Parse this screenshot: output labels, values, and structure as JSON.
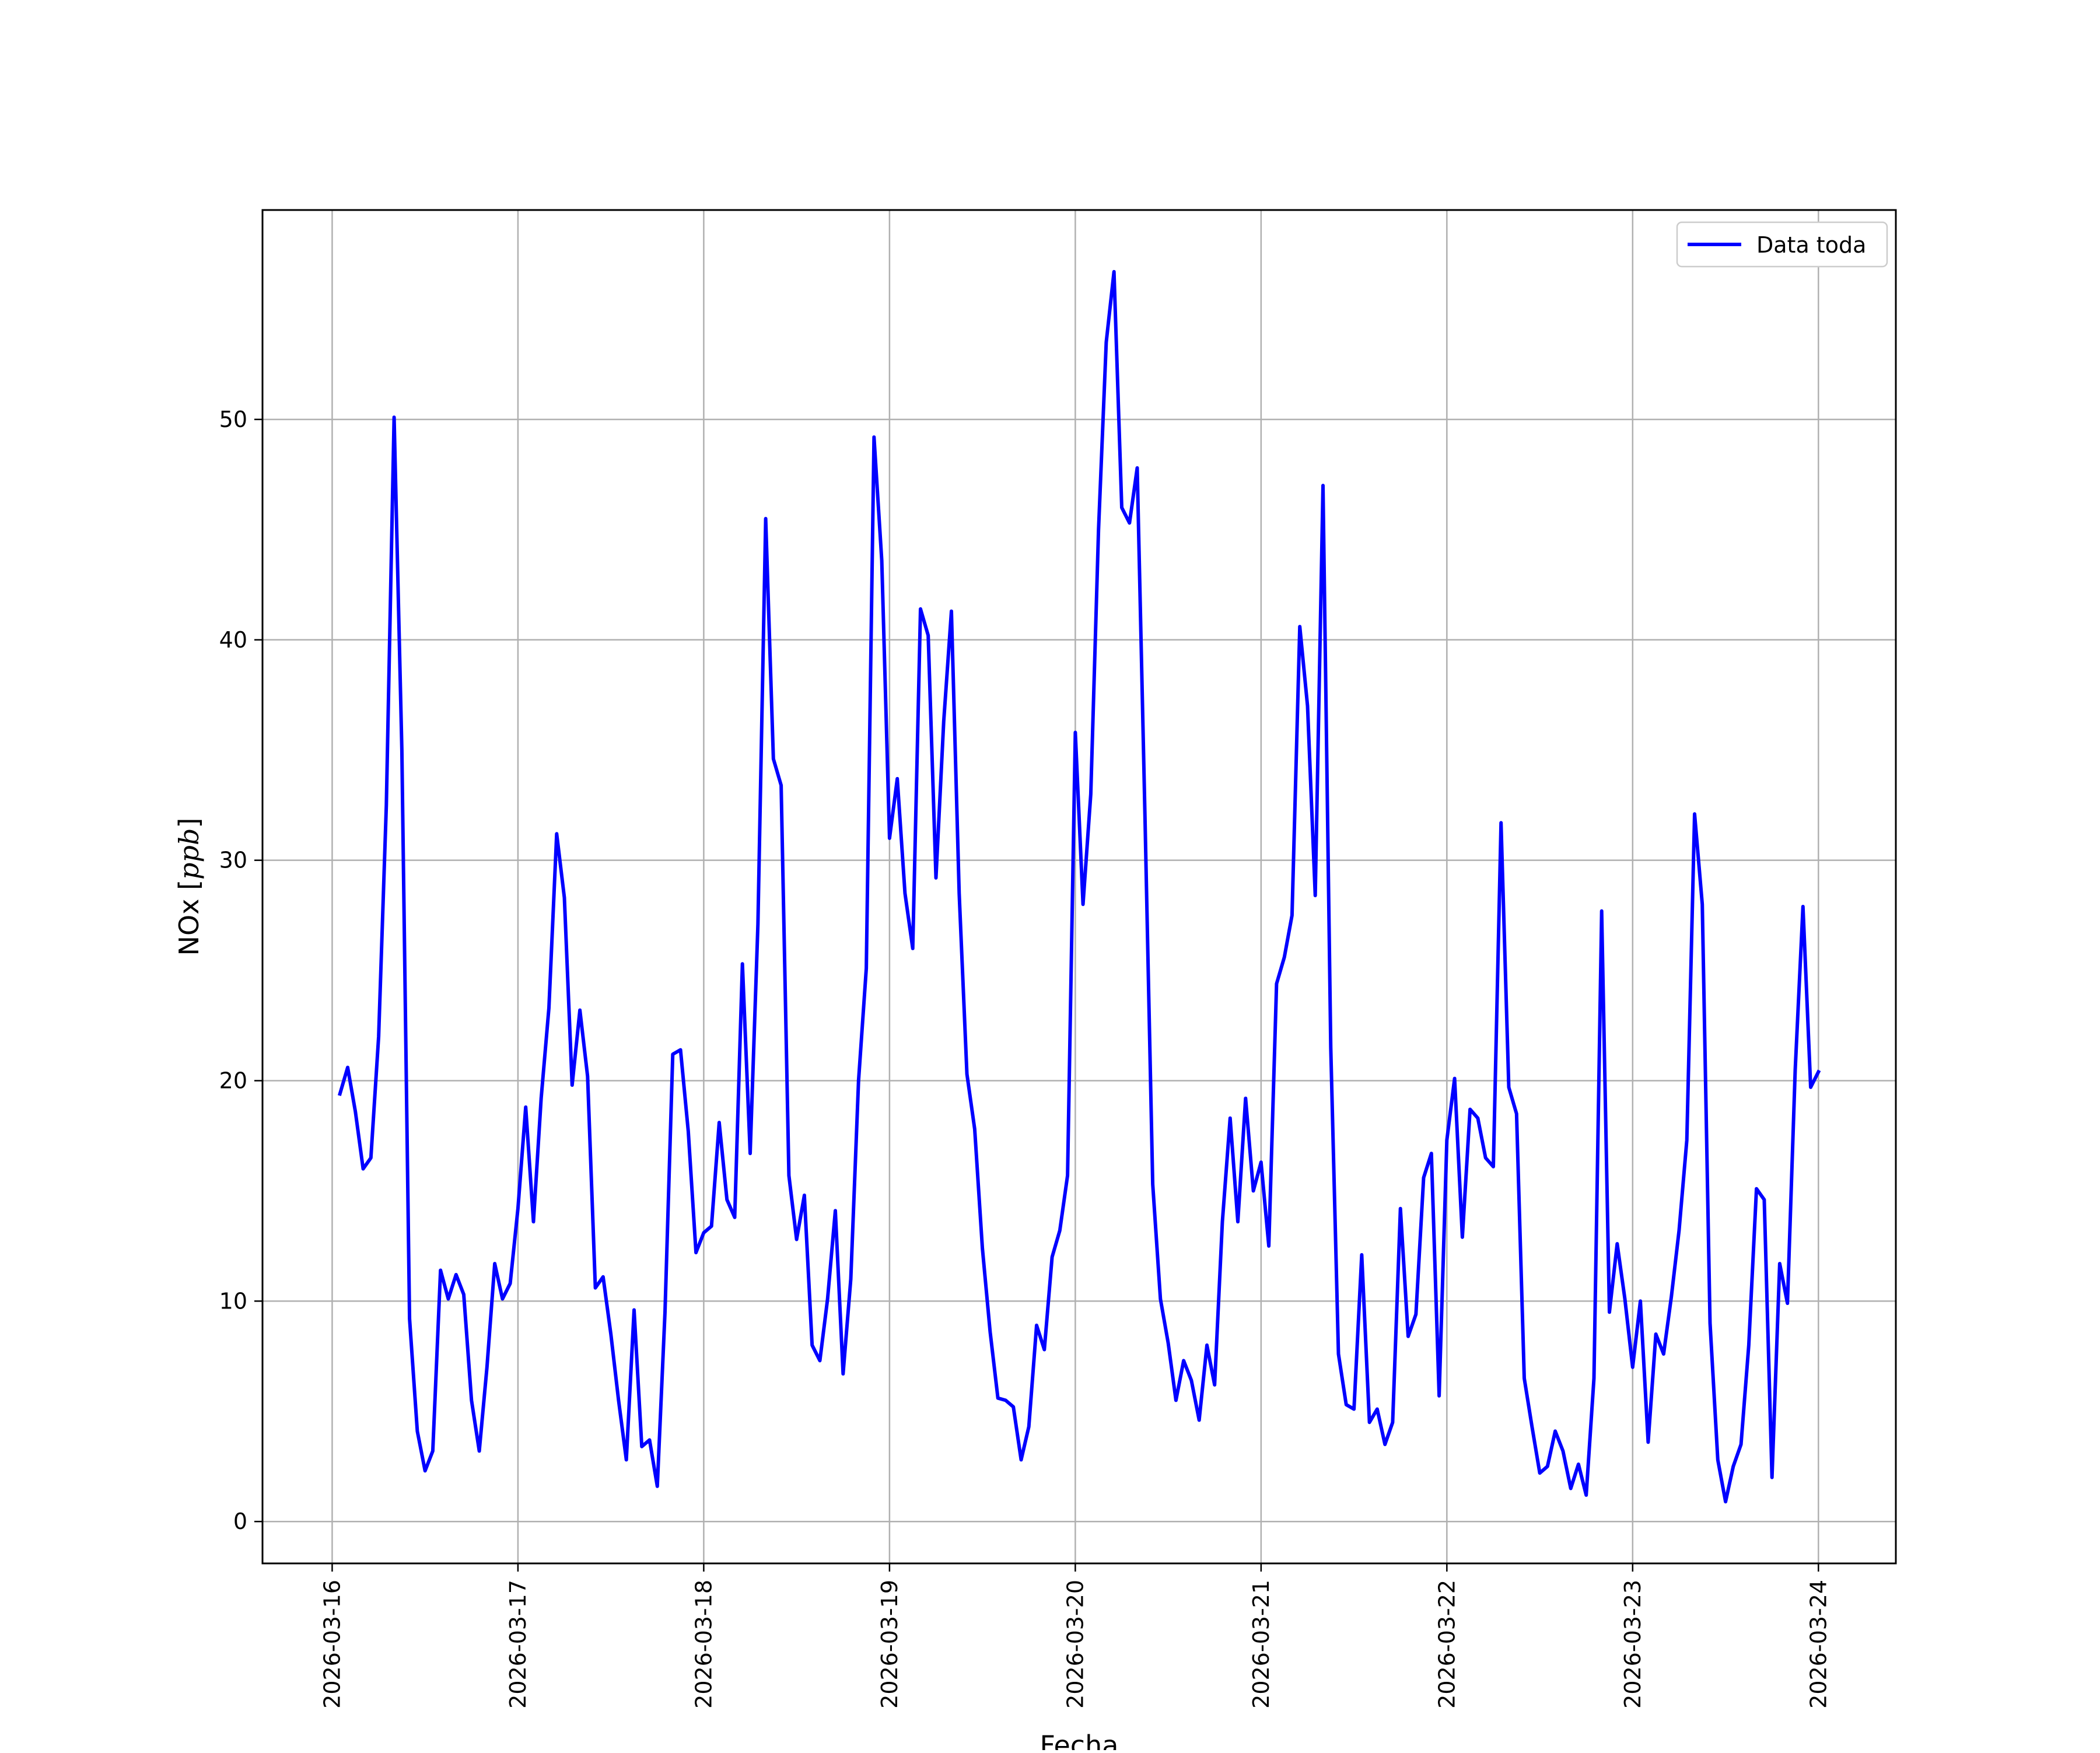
{
  "chart_data": {
    "type": "line",
    "title": "",
    "xlabel": "Fecha",
    "ylabel": "NOx [ppb]",
    "ylabel_parts": {
      "prefix": "NOx [",
      "unit": "ppb",
      "suffix": "]"
    },
    "xlim": [
      "2026-03-15T15:00",
      "2026-03-24T10:00"
    ],
    "ylim": [
      -1.9,
      59.5
    ],
    "grid": true,
    "legend_position": "top-right",
    "x_tick_labels": [
      "2026-03-16",
      "2026-03-17",
      "2026-03-18",
      "2026-03-19",
      "2026-03-20",
      "2026-03-21",
      "2026-03-22",
      "2026-03-23",
      "2026-03-24"
    ],
    "y_ticks": [
      0,
      10,
      20,
      30,
      40,
      50
    ],
    "series": [
      {
        "name": "Data toda",
        "color": "#0000ff",
        "x": [
          "2026-03-16T01:00",
          "2026-03-16T02:00",
          "2026-03-16T03:00",
          "2026-03-16T04:00",
          "2026-03-16T05:00",
          "2026-03-16T06:00",
          "2026-03-16T07:00",
          "2026-03-16T08:00",
          "2026-03-16T09:00",
          "2026-03-16T10:00",
          "2026-03-16T11:00",
          "2026-03-16T12:00",
          "2026-03-16T13:00",
          "2026-03-16T14:00",
          "2026-03-16T15:00",
          "2026-03-16T16:00",
          "2026-03-16T17:00",
          "2026-03-16T18:00",
          "2026-03-16T19:00",
          "2026-03-16T20:00",
          "2026-03-16T21:00",
          "2026-03-16T22:00",
          "2026-03-16T23:00",
          "2026-03-17T00:00",
          "2026-03-17T01:00",
          "2026-03-17T02:00",
          "2026-03-17T03:00",
          "2026-03-17T04:00",
          "2026-03-17T05:00",
          "2026-03-17T06:00",
          "2026-03-17T07:00",
          "2026-03-17T08:00",
          "2026-03-17T09:00",
          "2026-03-17T10:00",
          "2026-03-17T11:00",
          "2026-03-17T12:00",
          "2026-03-17T13:00",
          "2026-03-17T14:00",
          "2026-03-17T15:00",
          "2026-03-17T16:00",
          "2026-03-17T17:00",
          "2026-03-17T18:00",
          "2026-03-17T19:00",
          "2026-03-17T20:00",
          "2026-03-17T21:00",
          "2026-03-17T22:00",
          "2026-03-17T23:00",
          "2026-03-18T00:00",
          "2026-03-18T01:00",
          "2026-03-18T02:00",
          "2026-03-18T03:00",
          "2026-03-18T04:00",
          "2026-03-18T05:00",
          "2026-03-18T06:00",
          "2026-03-18T07:00",
          "2026-03-18T08:00",
          "2026-03-18T09:00",
          "2026-03-18T10:00",
          "2026-03-18T11:00",
          "2026-03-18T12:00",
          "2026-03-18T13:00",
          "2026-03-18T14:00",
          "2026-03-18T15:00",
          "2026-03-18T16:00",
          "2026-03-18T17:00",
          "2026-03-18T18:00",
          "2026-03-18T19:00",
          "2026-03-18T20:00",
          "2026-03-18T21:00",
          "2026-03-18T22:00",
          "2026-03-18T23:00",
          "2026-03-19T00:00",
          "2026-03-19T01:00",
          "2026-03-19T02:00",
          "2026-03-19T03:00",
          "2026-03-19T04:00",
          "2026-03-19T05:00",
          "2026-03-19T06:00",
          "2026-03-19T07:00",
          "2026-03-19T08:00",
          "2026-03-19T09:00",
          "2026-03-19T10:00",
          "2026-03-19T11:00",
          "2026-03-19T12:00",
          "2026-03-19T13:00",
          "2026-03-19T14:00",
          "2026-03-19T15:00",
          "2026-03-19T16:00",
          "2026-03-19T17:00",
          "2026-03-19T18:00",
          "2026-03-19T19:00",
          "2026-03-19T20:00",
          "2026-03-19T21:00",
          "2026-03-19T22:00",
          "2026-03-19T23:00",
          "2026-03-20T00:00",
          "2026-03-20T01:00",
          "2026-03-20T02:00",
          "2026-03-20T03:00",
          "2026-03-20T04:00",
          "2026-03-20T05:00",
          "2026-03-20T06:00",
          "2026-03-20T07:00",
          "2026-03-20T08:00",
          "2026-03-20T09:00",
          "2026-03-20T10:00",
          "2026-03-20T11:00",
          "2026-03-20T12:00",
          "2026-03-20T13:00",
          "2026-03-20T14:00",
          "2026-03-20T15:00",
          "2026-03-20T16:00",
          "2026-03-20T17:00",
          "2026-03-20T18:00",
          "2026-03-20T19:00",
          "2026-03-20T20:00",
          "2026-03-20T21:00",
          "2026-03-20T22:00",
          "2026-03-20T23:00",
          "2026-03-21T00:00",
          "2026-03-21T01:00",
          "2026-03-21T02:00",
          "2026-03-21T03:00",
          "2026-03-21T04:00",
          "2026-03-21T05:00",
          "2026-03-21T06:00",
          "2026-03-21T07:00",
          "2026-03-21T08:00",
          "2026-03-21T09:00",
          "2026-03-21T10:00",
          "2026-03-21T11:00",
          "2026-03-21T12:00",
          "2026-03-21T13:00",
          "2026-03-21T14:00",
          "2026-03-21T15:00",
          "2026-03-21T16:00",
          "2026-03-21T17:00",
          "2026-03-21T18:00",
          "2026-03-21T19:00",
          "2026-03-21T20:00",
          "2026-03-21T21:00",
          "2026-03-21T22:00",
          "2026-03-21T23:00",
          "2026-03-22T00:00",
          "2026-03-22T01:00",
          "2026-03-22T02:00",
          "2026-03-22T03:00",
          "2026-03-22T04:00",
          "2026-03-22T05:00",
          "2026-03-22T06:00",
          "2026-03-22T07:00",
          "2026-03-22T08:00",
          "2026-03-22T09:00",
          "2026-03-22T10:00",
          "2026-03-22T11:00",
          "2026-03-22T12:00",
          "2026-03-22T13:00",
          "2026-03-22T14:00",
          "2026-03-22T15:00",
          "2026-03-22T16:00",
          "2026-03-22T17:00",
          "2026-03-22T18:00",
          "2026-03-22T19:00",
          "2026-03-22T20:00",
          "2026-03-22T21:00",
          "2026-03-22T22:00",
          "2026-03-22T23:00",
          "2026-03-23T00:00",
          "2026-03-23T01:00",
          "2026-03-23T02:00",
          "2026-03-23T03:00",
          "2026-03-23T04:00",
          "2026-03-23T05:00",
          "2026-03-23T06:00",
          "2026-03-23T07:00",
          "2026-03-23T08:00",
          "2026-03-23T09:00",
          "2026-03-23T10:00",
          "2026-03-23T11:00",
          "2026-03-23T12:00",
          "2026-03-23T13:00",
          "2026-03-23T14:00",
          "2026-03-23T15:00",
          "2026-03-23T16:00",
          "2026-03-23T17:00",
          "2026-03-23T18:00",
          "2026-03-23T19:00",
          "2026-03-23T20:00",
          "2026-03-23T21:00",
          "2026-03-23T22:00",
          "2026-03-23T23:00",
          "2026-03-24T00:00"
        ],
        "values": [
          19.4,
          20.6,
          18.6,
          16.0,
          16.5,
          22.0,
          32.5,
          50.1,
          35.0,
          9.2,
          4.1,
          2.3,
          3.2,
          11.4,
          10.1,
          11.2,
          10.3,
          5.5,
          3.2,
          7.0,
          11.7,
          10.1,
          10.8,
          14.2,
          18.8,
          13.6,
          19.2,
          23.3,
          31.2,
          28.3,
          19.8,
          23.2,
          20.2,
          10.6,
          11.1,
          8.5,
          5.5,
          2.8,
          9.6,
          3.4,
          3.7,
          1.6,
          9.5,
          21.2,
          21.4,
          17.7,
          12.2,
          13.1,
          13.4,
          18.1,
          14.6,
          13.8,
          25.3,
          16.7,
          27.1,
          45.5,
          34.6,
          33.4,
          15.7,
          12.8,
          14.8,
          8.0,
          7.3,
          10.1,
          14.1,
          6.7,
          11.0,
          20.0,
          25.1,
          49.2,
          43.6,
          31.0,
          33.7,
          28.5,
          26.0,
          41.4,
          40.2,
          29.2,
          36.3,
          41.3,
          28.5,
          20.3,
          17.8,
          12.4,
          8.6,
          5.6,
          5.5,
          5.2,
          2.8,
          4.3,
          8.9,
          7.8,
          12.0,
          13.2,
          15.7,
          35.8,
          28.0,
          33.0,
          45.0,
          53.5,
          56.7,
          46.0,
          45.3,
          47.8,
          32.0,
          15.3,
          10.1,
          8.1,
          5.5,
          7.3,
          6.4,
          4.6,
          8.0,
          6.2,
          13.6,
          18.3,
          13.6,
          19.2,
          15.0,
          16.3,
          12.5,
          24.4,
          25.6,
          27.5,
          40.6,
          37.0,
          28.4,
          47.0,
          21.5,
          7.6,
          5.3,
          5.1,
          12.1,
          4.5,
          5.1,
          3.5,
          4.5,
          14.2,
          8.4,
          9.4,
          15.6,
          16.7,
          5.7,
          17.3,
          20.1,
          12.9,
          18.7,
          18.3,
          16.5,
          16.1,
          31.7,
          19.7,
          18.5,
          6.5,
          4.3,
          2.2,
          2.5,
          4.1,
          3.2,
          1.5,
          2.6,
          1.2,
          6.5,
          27.7,
          9.5,
          12.6,
          10.1,
          7.0,
          10.0,
          3.6,
          8.5,
          7.6,
          10.2,
          13.2,
          17.3,
          32.1,
          28.0,
          9.0,
          2.8,
          0.9,
          2.5,
          3.5,
          8.0,
          15.1,
          14.6,
          2.0,
          11.7,
          9.9,
          20.5,
          27.9,
          19.7,
          20.4
        ]
      }
    ]
  }
}
